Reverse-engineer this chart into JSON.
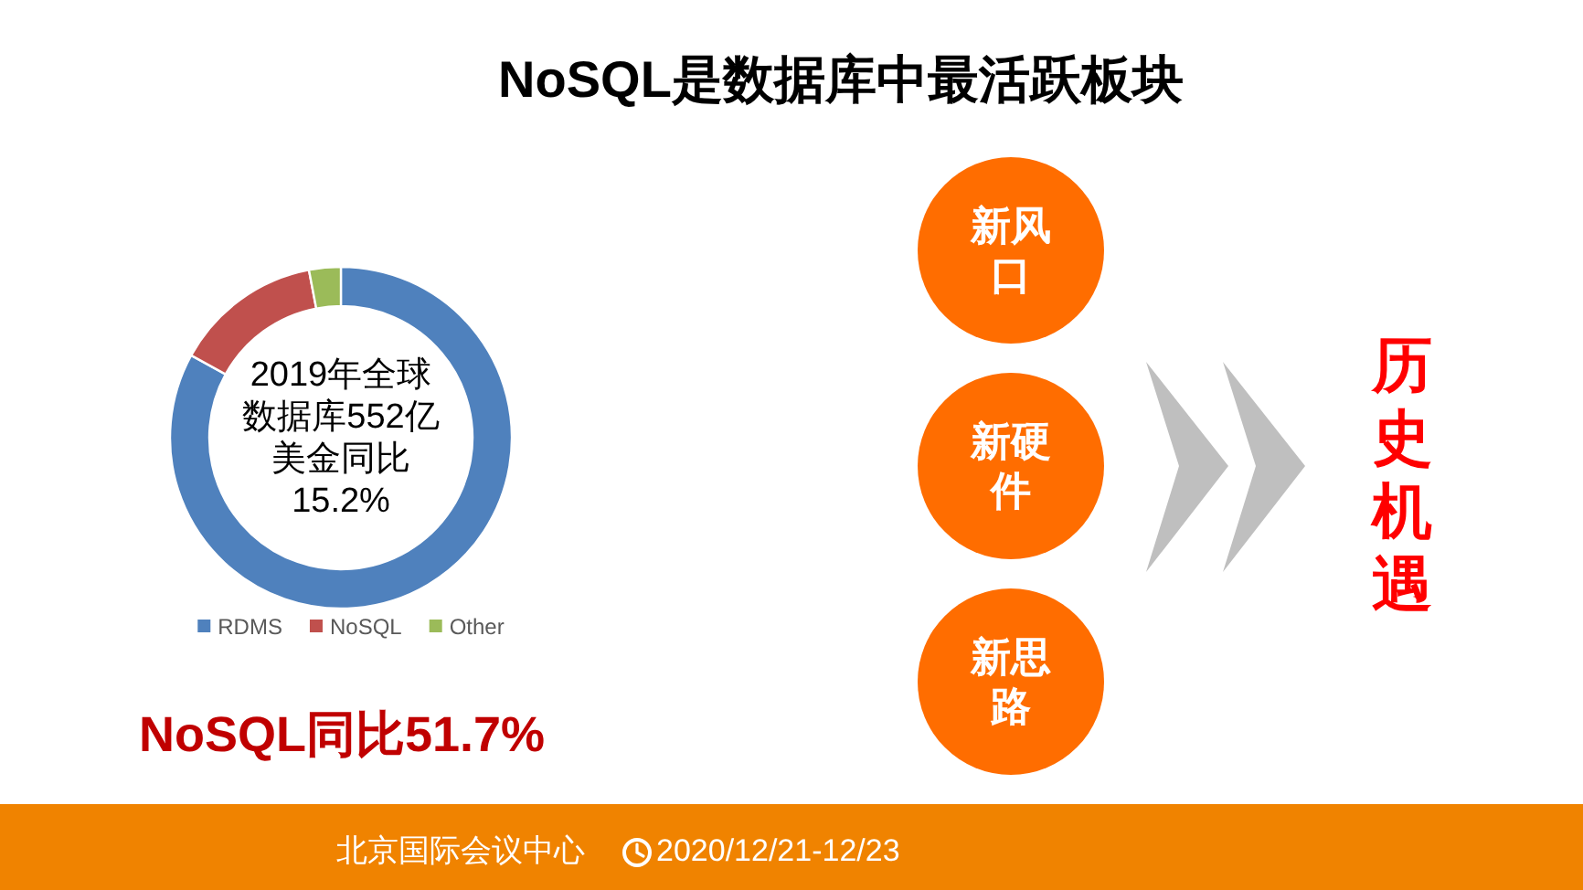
{
  "chart_data": {
    "type": "donut",
    "title": "NoSQL是数据库中最活跃板块",
    "categories": [
      "RDMS",
      "NoSQL",
      "Other"
    ],
    "values": [
      83,
      14,
      3
    ],
    "colors": [
      "#4f81bd",
      "#c0504d",
      "#9bbb59"
    ],
    "legend": "bottom",
    "annotations": [
      "2019年全球数据库552亿美金同比15.2%",
      "NoSQL同比51.7%",
      "新风口",
      "新硬件",
      "新思路",
      "历史机遇",
      "北京国际会议中心",
      "2020/12/21-12/23"
    ]
  }
}
